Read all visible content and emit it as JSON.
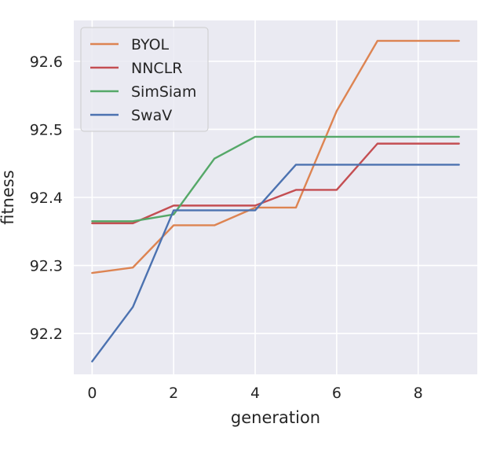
{
  "chart_data": {
    "type": "line",
    "title": "",
    "xlabel": "generation",
    "ylabel": "fitness",
    "xlim": [
      -0.45,
      9.45
    ],
    "ylim": [
      92.14,
      92.66
    ],
    "xticks": [
      0,
      2,
      4,
      6,
      8
    ],
    "xtick_labels": [
      "0",
      "2",
      "4",
      "6",
      "8"
    ],
    "yticks": [
      92.2,
      92.3,
      92.4,
      92.5,
      92.6
    ],
    "ytick_labels": [
      "92.2",
      "92.3",
      "92.4",
      "92.5",
      "92.6"
    ],
    "grid": true,
    "legend_position": "top-left",
    "x": [
      0,
      1,
      2,
      3,
      4,
      5,
      6,
      7,
      8,
      9
    ],
    "series": [
      {
        "name": "BYOL",
        "color": "#dd8452",
        "values": [
          92.289,
          92.297,
          92.359,
          92.359,
          92.385,
          92.385,
          92.527,
          92.63,
          92.63,
          92.63
        ]
      },
      {
        "name": "NNCLR",
        "color": "#c44e52",
        "values": [
          92.362,
          92.362,
          92.388,
          92.388,
          92.388,
          92.411,
          92.411,
          92.479,
          92.479,
          92.479
        ]
      },
      {
        "name": "SimSiam",
        "color": "#55a868",
        "values": [
          92.365,
          92.365,
          92.375,
          92.457,
          92.489,
          92.489,
          92.489,
          92.489,
          92.489,
          92.489
        ]
      },
      {
        "name": "SwaV",
        "color": "#4c72b0",
        "values": [
          92.159,
          92.239,
          92.381,
          92.381,
          92.381,
          92.448,
          92.448,
          92.448,
          92.448,
          92.448
        ]
      }
    ]
  },
  "colors": {
    "plot_background": "#eaeaf2",
    "grid": "#ffffff",
    "text": "#262626"
  }
}
